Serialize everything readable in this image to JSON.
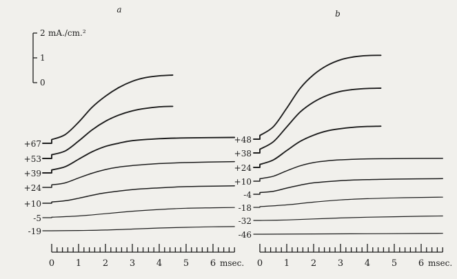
{
  "chart_data": [
    {
      "type": "line",
      "panel_label": "a",
      "xlabel": "",
      "x_unit": "msec.",
      "x_ticks": [
        "0",
        "1",
        "2",
        "3",
        "4",
        "5",
        "6"
      ],
      "xlim": [
        0,
        6.8
      ],
      "scale_bar": {
        "unit": "mA./cm.²",
        "labels": [
          "2",
          "1",
          "0"
        ],
        "range": [
          0,
          2
        ]
      },
      "series": [
        {
          "name": "+67",
          "values": [
            [
              0,
              0.15
            ],
            [
              0.5,
              0.35
            ],
            [
              1,
              0.85
            ],
            [
              1.5,
              1.45
            ],
            [
              2,
              1.9
            ],
            [
              2.5,
              2.25
            ],
            [
              3,
              2.5
            ],
            [
              3.5,
              2.65
            ],
            [
              4,
              2.72
            ],
            [
              4.5,
              2.75
            ]
          ]
        },
        {
          "name": "+53",
          "values": [
            [
              0,
              0.15
            ],
            [
              0.5,
              0.3
            ],
            [
              1,
              0.7
            ],
            [
              1.5,
              1.15
            ],
            [
              2,
              1.5
            ],
            [
              2.5,
              1.75
            ],
            [
              3,
              1.92
            ],
            [
              3.5,
              2.02
            ],
            [
              4,
              2.08
            ],
            [
              4.5,
              2.1
            ]
          ]
        },
        {
          "name": "+39",
          "values": [
            [
              0,
              0.12
            ],
            [
              0.5,
              0.25
            ],
            [
              1,
              0.55
            ],
            [
              1.5,
              0.85
            ],
            [
              2,
              1.07
            ],
            [
              2.5,
              1.2
            ],
            [
              3,
              1.3
            ],
            [
              4,
              1.38
            ],
            [
              5,
              1.41
            ],
            [
              6.8,
              1.43
            ]
          ]
        },
        {
          "name": "+24",
          "values": [
            [
              0,
              0.1
            ],
            [
              0.5,
              0.18
            ],
            [
              1,
              0.38
            ],
            [
              1.5,
              0.57
            ],
            [
              2,
              0.72
            ],
            [
              2.5,
              0.82
            ],
            [
              3,
              0.88
            ],
            [
              4,
              0.96
            ],
            [
              5,
              1.0
            ],
            [
              6.8,
              1.04
            ]
          ]
        },
        {
          "name": "+10",
          "values": [
            [
              0,
              0.05
            ],
            [
              0.5,
              0.1
            ],
            [
              1,
              0.2
            ],
            [
              1.5,
              0.32
            ],
            [
              2,
              0.42
            ],
            [
              3,
              0.55
            ],
            [
              4,
              0.62
            ],
            [
              5,
              0.67
            ],
            [
              6,
              0.69
            ],
            [
              6.8,
              0.7
            ]
          ]
        },
        {
          "name": "-5",
          "values": [
            [
              0,
              0.02
            ],
            [
              1,
              0.07
            ],
            [
              2,
              0.16
            ],
            [
              3,
              0.26
            ],
            [
              4,
              0.33
            ],
            [
              5,
              0.38
            ],
            [
              6,
              0.4
            ],
            [
              6.8,
              0.41
            ]
          ]
        },
        {
          "name": "-19",
          "values": [
            [
              0,
              0.0
            ],
            [
              1,
              0.01
            ],
            [
              2,
              0.03
            ],
            [
              3,
              0.07
            ],
            [
              4,
              0.11
            ],
            [
              5,
              0.14
            ],
            [
              6,
              0.16
            ],
            [
              6.8,
              0.17
            ]
          ]
        }
      ]
    },
    {
      "type": "line",
      "panel_label": "b",
      "xlabel": "",
      "x_unit": "msec.",
      "x_ticks": [
        "0",
        "1",
        "2",
        "3",
        "4",
        "5",
        "6"
      ],
      "xlim": [
        0,
        6.8
      ],
      "series": [
        {
          "name": "+48",
          "values": [
            [
              0,
              0.15
            ],
            [
              0.5,
              0.5
            ],
            [
              1,
              1.25
            ],
            [
              1.5,
              2.05
            ],
            [
              2,
              2.6
            ],
            [
              2.5,
              2.97
            ],
            [
              3,
              3.2
            ],
            [
              3.5,
              3.32
            ],
            [
              4,
              3.37
            ],
            [
              4.5,
              3.38
            ]
          ]
        },
        {
          "name": "+38",
          "values": [
            [
              0,
              0.15
            ],
            [
              0.5,
              0.45
            ],
            [
              1,
              1.05
            ],
            [
              1.5,
              1.65
            ],
            [
              2,
              2.05
            ],
            [
              2.5,
              2.32
            ],
            [
              3,
              2.48
            ],
            [
              3.5,
              2.56
            ],
            [
              4,
              2.6
            ],
            [
              4.5,
              2.61
            ]
          ]
        },
        {
          "name": "+24",
          "values": [
            [
              0,
              0.12
            ],
            [
              0.5,
              0.3
            ],
            [
              1,
              0.68
            ],
            [
              1.5,
              1.05
            ],
            [
              2,
              1.3
            ],
            [
              2.5,
              1.47
            ],
            [
              3,
              1.56
            ],
            [
              3.5,
              1.62
            ],
            [
              4,
              1.65
            ],
            [
              4.5,
              1.66
            ]
          ]
        },
        {
          "name": "+10",
          "values": [
            [
              0,
              0.1
            ],
            [
              0.5,
              0.2
            ],
            [
              1,
              0.42
            ],
            [
              1.5,
              0.62
            ],
            [
              2,
              0.75
            ],
            [
              2.5,
              0.82
            ],
            [
              3,
              0.86
            ],
            [
              4,
              0.9
            ],
            [
              5,
              0.91
            ],
            [
              6.8,
              0.92
            ]
          ]
        },
        {
          "name": "-4",
          "values": [
            [
              0,
              0.07
            ],
            [
              0.5,
              0.12
            ],
            [
              1,
              0.25
            ],
            [
              1.5,
              0.37
            ],
            [
              2,
              0.46
            ],
            [
              3,
              0.55
            ],
            [
              4,
              0.59
            ],
            [
              5,
              0.61
            ],
            [
              6.8,
              0.63
            ]
          ]
        },
        {
          "name": "-18",
          "values": [
            [
              0,
              0.03
            ],
            [
              1,
              0.1
            ],
            [
              2,
              0.21
            ],
            [
              3,
              0.3
            ],
            [
              4,
              0.35
            ],
            [
              5,
              0.38
            ],
            [
              6,
              0.4
            ],
            [
              6.8,
              0.41
            ]
          ]
        },
        {
          "name": "-32",
          "values": [
            [
              0,
              0.0
            ],
            [
              1,
              0.02
            ],
            [
              2,
              0.06
            ],
            [
              3,
              0.1
            ],
            [
              4,
              0.13
            ],
            [
              5,
              0.15
            ],
            [
              6,
              0.17
            ],
            [
              6.8,
              0.18
            ]
          ]
        },
        {
          "name": "-46",
          "values": [
            [
              0,
              0.0
            ],
            [
              2,
              0.01
            ],
            [
              4,
              0.02
            ],
            [
              6,
              0.03
            ],
            [
              6.8,
              0.035
            ]
          ]
        }
      ]
    }
  ]
}
